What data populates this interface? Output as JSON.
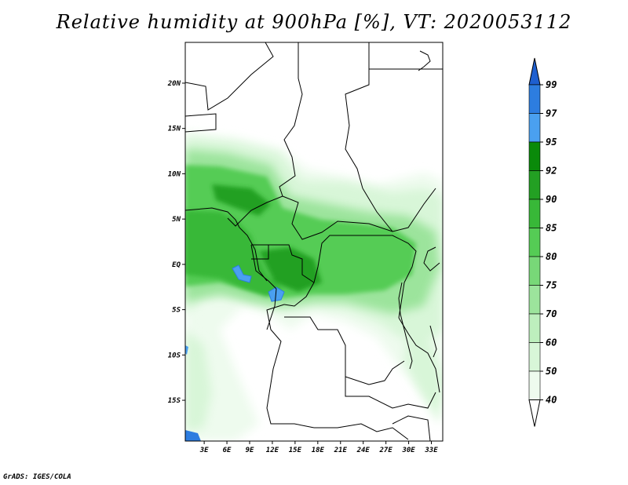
{
  "title": "Relative humidity at 900hPa [%], VT: 2020053112",
  "credit": "GrADS: IGES/COLA",
  "map": {
    "lat_ticks": [
      "20N",
      "15N",
      "10N",
      "5N",
      "EQ",
      "5S",
      "10S",
      "15S"
    ],
    "lat_values": [
      20,
      15,
      10,
      5,
      0,
      -5,
      -10,
      -15
    ],
    "lon_ticks": [
      "3E",
      "6E",
      "9E",
      "12E",
      "15E",
      "18E",
      "21E",
      "24E",
      "27E",
      "30E",
      "33E"
    ],
    "lon_values": [
      3,
      6,
      9,
      12,
      15,
      18,
      21,
      24,
      27,
      30,
      33
    ],
    "lon_range": [
      0.5,
      34.5
    ],
    "lat_range": [
      -19.5,
      24.5
    ]
  },
  "colorbar": {
    "labels": [
      "99",
      "97",
      "95",
      "92",
      "90",
      "85",
      "80",
      "75",
      "70",
      "60",
      "50",
      "40"
    ],
    "colors": [
      "#1e5fd0",
      "#2d7de0",
      "#4aa0f0",
      "#0a8a0a",
      "#23a023",
      "#38b838",
      "#55cc55",
      "#78d878",
      "#9ce49c",
      "#bdefbd",
      "#d8f6d8",
      "#eefbee"
    ]
  }
}
